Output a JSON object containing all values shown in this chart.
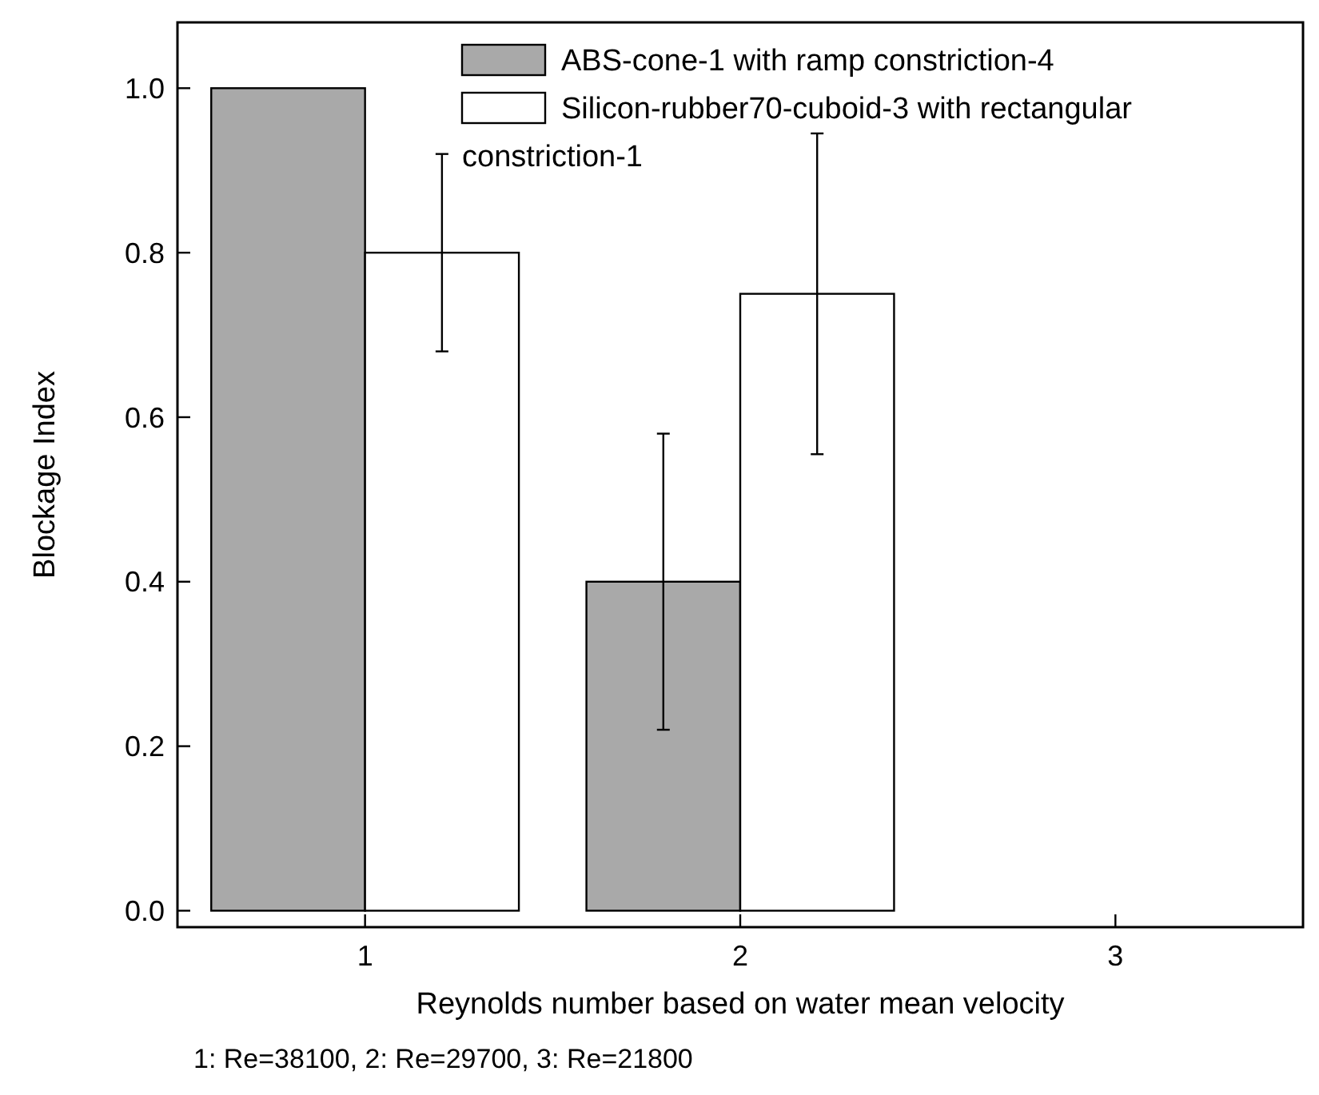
{
  "chart_data": {
    "type": "bar",
    "xlabel": "Reynolds number based on water mean velocity",
    "ylabel": "Blockage Index",
    "annotations": [
      "1: Re=38100, 2: Re=29700, 3: Re=21800"
    ],
    "categories": [
      "1",
      "2",
      "3"
    ],
    "series": [
      {
        "name": "ABS-cone-1 with ramp constriction-4",
        "color": "#a9a9a9",
        "values": [
          1.0,
          0.4,
          0.0
        ],
        "errors": [
          null,
          [
            0.22,
            0.58
          ],
          null
        ]
      },
      {
        "name": "Silicon-rubber70-cuboid-3 with rectangular constriction-1",
        "color": "#ffffff",
        "values": [
          0.8,
          0.75,
          0.0
        ],
        "errors": [
          [
            0.68,
            0.92
          ],
          [
            0.555,
            0.945
          ],
          null
        ]
      }
    ],
    "ylim": [
      -0.02,
      1.08
    ],
    "yticks": [
      {
        "value": 0,
        "label": "0.0"
      },
      {
        "value": 0.2,
        "label": "0.2"
      },
      {
        "value": 0.4,
        "label": "0.4"
      },
      {
        "value": 0.6,
        "label": "0.6"
      },
      {
        "value": 0.8,
        "label": "0.8"
      },
      {
        "value": 1,
        "label": "1.0"
      }
    ],
    "grid": false,
    "legend": "top right"
  }
}
